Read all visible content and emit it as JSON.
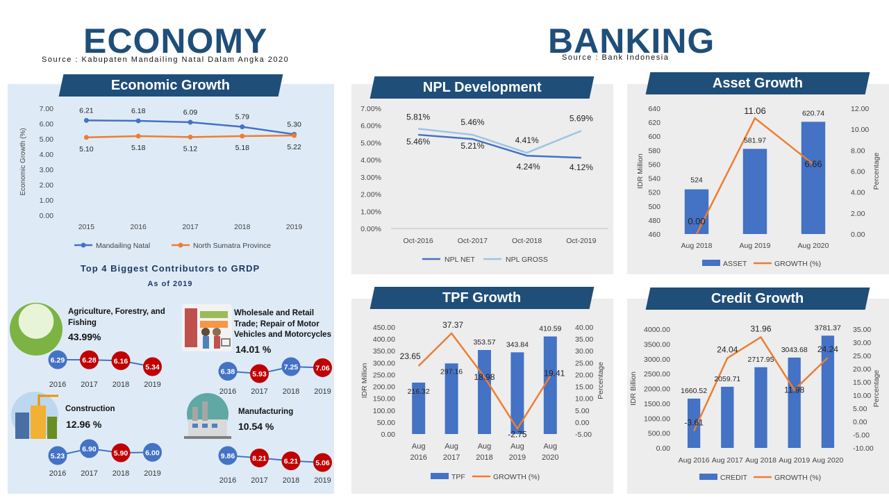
{
  "economy": {
    "title": "ECONOMY",
    "source": "Source : Kabupaten Mandailing Natal Dalam Angka 2020"
  },
  "banking": {
    "title": "BANKING",
    "source": "Source : Bank Indonesia"
  },
  "colors": {
    "navy": "#1f4e79",
    "bar": "#4472c4",
    "orange": "#ed7d31",
    "light_blue": "#9dc3e6",
    "red": "#c00000"
  },
  "contributors": {
    "title": "Top 4 Biggest Contributors to GRDP",
    "subtitle": "As of 2019",
    "sectors": [
      {
        "name_lines": [
          "Agriculture, Forestry, and",
          "Fishing"
        ],
        "share": "43.99%",
        "icon": "farm-icon",
        "years": [
          "2016",
          "2017",
          "2018",
          "2019"
        ],
        "values": [
          6.29,
          6.28,
          6.16,
          5.34
        ],
        "labels": [
          "6.29",
          "6.28",
          "6.16",
          "5.34"
        ],
        "colors": [
          "#4472c4",
          "#c00000",
          "#c00000",
          "#c00000"
        ]
      },
      {
        "name_lines": [
          "Wholesale and Retail",
          "Trade; Repair of Motor",
          "Vehicles and Motorcycles"
        ],
        "share": "14.01 %",
        "icon": "shopping-icon",
        "years": [
          "2016",
          "2017",
          "2018",
          "2019"
        ],
        "values": [
          6.38,
          5.93,
          7.25,
          7.06
        ],
        "labels": [
          "6.38",
          "5.93",
          "7.25",
          "7.06"
        ],
        "colors": [
          "#4472c4",
          "#c00000",
          "#4472c4",
          "#c00000"
        ]
      },
      {
        "name_lines": [
          "Construction"
        ],
        "share": "12.96 %",
        "icon": "construction-icon",
        "years": [
          "2016",
          "2017",
          "2018",
          "2019"
        ],
        "values": [
          5.23,
          6.9,
          5.9,
          6.0
        ],
        "labels": [
          "5.23",
          "6.90",
          "5.90",
          "6.00"
        ],
        "colors": [
          "#4472c4",
          "#4472c4",
          "#c00000",
          "#4472c4"
        ]
      },
      {
        "name_lines": [
          "Manufacturing"
        ],
        "share": "10.54 %",
        "icon": "factory-icon",
        "years": [
          "2016",
          "2017",
          "2018",
          "2019"
        ],
        "values": [
          9.86,
          8.21,
          6.21,
          5.06
        ],
        "labels": [
          "9.86",
          "8.21",
          "6.21",
          "5.06"
        ],
        "colors": [
          "#4472c4",
          "#c00000",
          "#c00000",
          "#c00000"
        ]
      }
    ]
  },
  "chart_data": [
    {
      "id": "economic-growth",
      "type": "line",
      "title": "Economic Growth",
      "x": [
        "2015",
        "2016",
        "2017",
        "2018",
        "2019"
      ],
      "ylabel": "Economic Growth (%)",
      "ylim": [
        0,
        7
      ],
      "yticks": [
        "0.00",
        "1.00",
        "2.00",
        "3.00",
        "4.00",
        "5.00",
        "6.00",
        "7.00"
      ],
      "series": [
        {
          "name": "Mandailing Natal",
          "values": [
            6.21,
            6.18,
            6.09,
            5.79,
            5.3
          ],
          "labels": [
            "6.21",
            "6.18",
            "6.09",
            "5.79",
            "5.30"
          ],
          "color": "#4472c4"
        },
        {
          "name": "North Sumatra Province",
          "values": [
            5.1,
            5.18,
            5.12,
            5.18,
            5.22
          ],
          "labels": [
            "5.10",
            "5.18",
            "5.12",
            "5.18",
            "5.22"
          ],
          "color": "#ed7d31"
        }
      ],
      "legend": "bottom"
    },
    {
      "id": "npl-development",
      "type": "line",
      "title": "NPL Development",
      "x": [
        "Oct-2016",
        "Oct-2017",
        "Oct-2018",
        "Oct-2019"
      ],
      "ylim": [
        0,
        0.07
      ],
      "yticks": [
        "0.00%",
        "1.00%",
        "2.00%",
        "3.00%",
        "4.00%",
        "5.00%",
        "6.00%",
        "7.00%"
      ],
      "series": [
        {
          "name": "NPL NET",
          "values": [
            5.46,
            5.21,
            4.24,
            4.12
          ],
          "labels": [
            "5.46%",
            "5.21%",
            "4.24%",
            "4.12%"
          ],
          "color": "#4472c4"
        },
        {
          "name": "NPL GROSS",
          "values": [
            5.81,
            5.46,
            4.41,
            5.69
          ],
          "labels": [
            "5.81%",
            "5.46%",
            "4.41%",
            "5.69%"
          ],
          "color": "#9dc3e6"
        }
      ],
      "legend": "bottom"
    },
    {
      "id": "asset-growth",
      "type": "bar",
      "title": "Asset Growth",
      "categories": [
        "Aug 2018",
        "Aug 2019",
        "Aug 2020"
      ],
      "ylabel": "IDR Million",
      "y2label": "Percentage",
      "ylim": [
        460,
        640
      ],
      "y2lim": [
        0,
        12
      ],
      "yticks": [
        "460",
        "480",
        "500",
        "520",
        "540",
        "560",
        "580",
        "600",
        "620",
        "640"
      ],
      "y2ticks": [
        "0.00",
        "2.00",
        "4.00",
        "6.00",
        "8.00",
        "10.00",
        "12.00"
      ],
      "series": [
        {
          "name": "ASSET",
          "values": [
            524,
            581.97,
            620.74
          ],
          "labels": [
            "524",
            "581.97",
            "620.74"
          ],
          "color": "#4472c4",
          "axis": "left"
        },
        {
          "name": "GROWTH (%)",
          "values": [
            0.0,
            11.06,
            6.66
          ],
          "labels": [
            "0.00",
            "11.06",
            "6.66"
          ],
          "color": "#ed7d31",
          "axis": "right"
        }
      ],
      "legend": "bottom"
    },
    {
      "id": "tpf-growth",
      "type": "bar",
      "title": "TPF Growth",
      "categories": [
        [
          "Aug",
          "2016"
        ],
        [
          "Aug",
          "2017"
        ],
        [
          "Aug",
          "2018"
        ],
        [
          "Aug",
          "2019"
        ],
        [
          "Aug",
          "2020"
        ]
      ],
      "ylabel": "IDR Million",
      "y2label": "Percentage",
      "ylim": [
        0,
        450
      ],
      "y2lim": [
        -5,
        40
      ],
      "yticks": [
        "0.00",
        "50.00",
        "100.00",
        "150.00",
        "200.00",
        "250.00",
        "300.00",
        "350.00",
        "400.00",
        "450.00"
      ],
      "y2ticks": [
        "-5.00",
        "0.00",
        "5.00",
        "10.00",
        "15.00",
        "20.00",
        "25.00",
        "30.00",
        "35.00",
        "40.00"
      ],
      "series": [
        {
          "name": "TPF",
          "values": [
            216.32,
            297.16,
            353.57,
            343.84,
            410.59
          ],
          "labels": [
            "216.32",
            "297.16",
            "353.57",
            "343.84",
            "410.59"
          ],
          "color": "#4472c4",
          "axis": "left"
        },
        {
          "name": "GROWTH (%)",
          "values": [
            23.65,
            37.37,
            18.98,
            -2.75,
            19.41
          ],
          "labels": [
            "23.65",
            "37.37",
            "18.98",
            "-2.75",
            "19.41"
          ],
          "color": "#ed7d31",
          "axis": "right"
        }
      ],
      "legend": "bottom"
    },
    {
      "id": "credit-growth",
      "type": "bar",
      "title": "Credit Growth",
      "categories": [
        "Aug 2016",
        "Aug 2017",
        "Aug 2018",
        "Aug 2019",
        "Aug 2020"
      ],
      "ylabel": "IDR Billion",
      "y2label": "Percentage",
      "ylim": [
        0,
        4000
      ],
      "y2lim": [
        -10,
        35
      ],
      "yticks": [
        "0.00",
        "500.00",
        "1000.00",
        "1500.00",
        "2000.00",
        "2500.00",
        "3000.00",
        "3500.00",
        "4000.00"
      ],
      "y2ticks": [
        "-10.00",
        "-5.00",
        "0.00",
        "5.00",
        "10.00",
        "15.00",
        "20.00",
        "25.00",
        "30.00",
        "35.00"
      ],
      "series": [
        {
          "name": "CREDIT",
          "values": [
            1660.52,
            2059.71,
            2717.95,
            3043.68,
            3781.37
          ],
          "labels": [
            "1660.52",
            "2059.71",
            "2717.95",
            "3043.68",
            "3781.37"
          ],
          "color": "#4472c4",
          "axis": "left"
        },
        {
          "name": "GROWTH (%)",
          "values": [
            -3.61,
            24.04,
            31.96,
            11.98,
            24.24
          ],
          "labels": [
            "-3.61",
            "24.04",
            "31.96",
            "11.98",
            "24.24"
          ],
          "color": "#ed7d31",
          "axis": "right"
        }
      ],
      "legend": "bottom"
    }
  ]
}
